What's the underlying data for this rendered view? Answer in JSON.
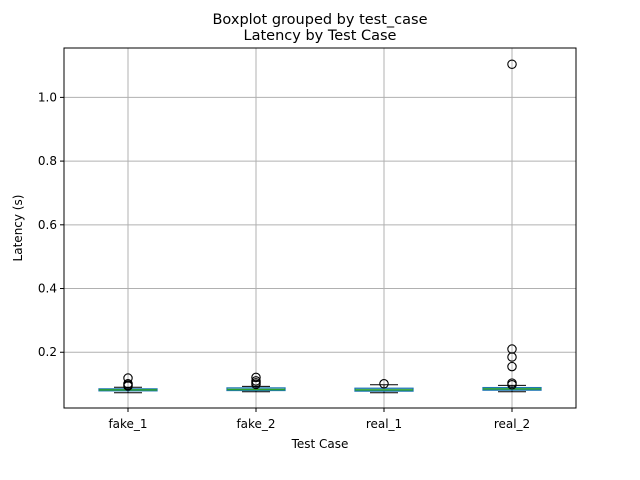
{
  "chart_data": {
    "type": "boxplot",
    "suptitle": "Boxplot grouped by test_case",
    "title": "Latency by Test Case",
    "xlabel": "Test Case",
    "ylabel": "Latency (s)",
    "ylim": [
      0.025,
      1.155
    ],
    "yticks": [
      0.2,
      0.4,
      0.6,
      0.8,
      1.0
    ],
    "ytick_labels": [
      "0.2",
      "0.4",
      "0.6",
      "0.8",
      "1.0"
    ],
    "grid": true,
    "categories": [
      "fake_1",
      "fake_2",
      "real_1",
      "real_2"
    ],
    "boxes": [
      {
        "name": "fake_1",
        "whisker_low": 0.073,
        "q1": 0.079,
        "median": 0.082,
        "q3": 0.085,
        "whisker_high": 0.09,
        "outliers": [
          0.119,
          0.101,
          0.097,
          0.094
        ]
      },
      {
        "name": "fake_2",
        "whisker_low": 0.076,
        "q1": 0.08,
        "median": 0.083,
        "q3": 0.088,
        "whisker_high": 0.093,
        "outliers": [
          0.121,
          0.11,
          0.104,
          0.099
        ]
      },
      {
        "name": "real_1",
        "whisker_low": 0.073,
        "q1": 0.078,
        "median": 0.082,
        "q3": 0.087,
        "whisker_high": 0.098,
        "outliers": [
          0.101
        ]
      },
      {
        "name": "real_2",
        "whisker_low": 0.076,
        "q1": 0.081,
        "median": 0.085,
        "q3": 0.089,
        "whisker_high": 0.096,
        "outliers": [
          1.104,
          0.21,
          0.185,
          0.155,
          0.103,
          0.098
        ]
      }
    ],
    "colors": {
      "box": "#1f77b4",
      "median": "#2ca02c",
      "whisker": "#000000",
      "grid": "#b0b0b0",
      "axes": "#000000"
    }
  }
}
